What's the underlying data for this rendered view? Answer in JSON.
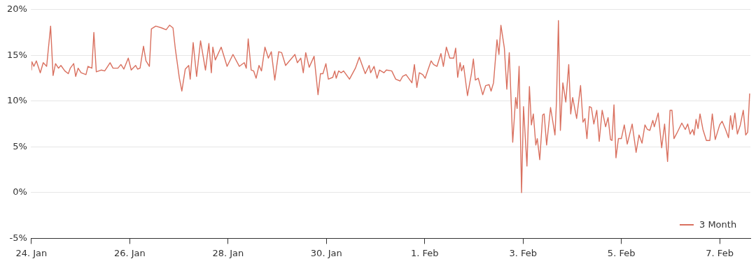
{
  "chart_data": {
    "type": "line",
    "xlim": [
      "--01-24",
      "--02-07T15:00"
    ],
    "ylim": [
      -5,
      20
    ],
    "xticks": [
      {
        "value": "--01-24",
        "label": "24. Jan"
      },
      {
        "value": "--01-26",
        "label": "26. Jan"
      },
      {
        "value": "--01-28",
        "label": "28. Jan"
      },
      {
        "value": "--01-30",
        "label": "30. Jan"
      },
      {
        "value": "--02-01",
        "label": "1. Feb"
      },
      {
        "value": "--02-03",
        "label": "3. Feb"
      },
      {
        "value": "--02-05",
        "label": "5. Feb"
      },
      {
        "value": "--02-07",
        "label": "7. Feb"
      }
    ],
    "yticks": [
      {
        "value": -5,
        "label": "-5%"
      },
      {
        "value": 0,
        "label": "0%"
      },
      {
        "value": 5,
        "label": "5%"
      },
      {
        "value": 10,
        "label": "10%"
      },
      {
        "value": 15,
        "label": "15%"
      },
      {
        "value": 20,
        "label": "20%"
      }
    ],
    "grid": "y",
    "legend": "bottom right",
    "marker": "none",
    "line_style": "solid",
    "series": [
      {
        "name": "3 Month",
        "color": "#d9705f",
        "x": [
          "--01-24T00:00",
          "--01-24T00:14",
          "--01-24T01:12",
          "--01-24T02:24",
          "--01-24T04:19",
          "--01-24T05:46",
          "--01-24T07:26",
          "--01-24T09:22",
          "--01-24T10:34",
          "--01-24T11:46",
          "--01-24T13:12",
          "--01-24T14:24",
          "--01-24T16:19",
          "--01-24T18:00",
          "--01-24T18:58",
          "--01-24T20:38",
          "--01-24T21:36",
          "--01-24T22:48",
          "--01-25T00:14",
          "--01-25T02:38",
          "--01-25T03:36",
          "--01-25T05:31",
          "--01-25T06:29",
          "--01-25T07:41",
          "--01-25T10:05",
          "--01-25T11:46",
          "--01-25T14:24",
          "--01-25T15:50",
          "--01-25T18:14",
          "--01-25T19:41",
          "--01-25T21:07",
          "--01-25T23:17",
          "--01-26T00:43",
          "--01-26T02:53",
          "--01-26T03:50",
          "--01-26T05:02",
          "--01-26T06:43",
          "--01-26T07:55",
          "--01-26T09:36",
          "--01-26T10:34",
          "--01-26T12:43",
          "--01-26T15:36",
          "--01-26T17:46",
          "--01-26T19:26",
          "--01-26T21:07",
          "--01-26T22:19",
          "--01-27T00:14",
          "--01-27T01:26",
          "--01-27T03:07",
          "--01-27T04:48",
          "--01-27T05:31",
          "--01-27T06:58",
          "--01-27T08:38",
          "--01-27T10:34",
          "--01-27T12:58",
          "--01-27T14:38",
          "--01-27T15:50",
          "--01-27T16:34",
          "--01-27T17:46",
          "--01-27T20:38",
          "--01-27T23:31",
          "--01-28T02:24",
          "--01-28T05:31",
          "--01-28T07:55",
          "--01-28T08:53",
          "--01-28T09:50",
          "--01-28T11:17",
          "--01-28T12:29",
          "--01-28T13:41",
          "--01-28T15:07",
          "--01-28T16:19",
          "--01-28T18:00",
          "--01-28T19:41",
          "--01-28T21:07",
          "--01-28T22:48",
          "--01-29T00:43",
          "--01-29T02:10",
          "--01-29T04:05",
          "--01-29T08:38",
          "--01-29T09:50",
          "--01-29T11:31",
          "--01-29T12:43",
          "--01-29T13:55",
          "--01-29T15:36",
          "--01-29T18:00",
          "--01-29T19:55",
          "--01-29T21:07",
          "--01-29T22:19",
          "--01-29T23:46",
          "--01-30T00:58",
          "--01-30T03:07",
          "--01-30T04:05",
          "--01-30T04:48",
          "--01-30T06:00",
          "--01-30T07:12",
          "--01-30T08:24",
          "--01-30T11:17",
          "--01-30T14:10",
          "--01-30T16:05",
          "--01-30T18:58",
          "--01-30T20:53",
          "--01-30T21:36",
          "--01-30T23:17",
          "--01-31T00:43",
          "--01-31T01:55",
          "--01-31T04:05",
          "--01-31T05:17",
          "--01-31T07:55",
          "--01-31T09:50",
          "--01-31T12:00",
          "--01-31T13:12",
          "--01-31T14:53",
          "--01-31T17:46",
          "--01-31T18:58",
          "--01-31T20:10",
          "--01-31T21:22",
          "--01-31T23:02",
          "--02-01T00:14",
          "--02-01T01:26",
          "--02-01T03:07",
          "--02-01T04:19",
          "--02-01T06:00",
          "--02-01T07:55",
          "--02-01T09:07",
          "--02-01T10:34",
          "--02-01T12:14",
          "--02-01T14:10",
          "--02-01T15:07",
          "--02-01T16:05",
          "--02-01T17:17",
          "--02-01T18:00",
          "--02-01T18:58",
          "--02-01T20:53",
          "--02-01T22:48",
          "--02-01T23:46",
          "--02-02T00:43",
          "--02-02T02:10",
          "--02-02T04:19",
          "--02-02T05:46",
          "--02-02T07:26",
          "--02-02T08:24",
          "--02-02T09:36",
          "--02-02T11:17",
          "--02-02T12:14",
          "--02-02T13:12",
          "--02-02T14:53",
          "--02-02T16:05",
          "--02-02T17:17",
          "--02-02T18:58",
          "--02-02T20:24",
          "--02-02T21:07",
          "--02-02T22:05",
          "--02-02T23:17",
          "--02-03T00:14",
          "--02-03T01:55",
          "--02-03T03:07",
          "--02-03T04:05",
          "--02-03T05:02",
          "--02-03T06:14",
          "--02-03T06:58",
          "--02-03T08:10",
          "--02-03T09:36",
          "--02-03T10:19",
          "--02-03T11:31",
          "--02-03T13:26",
          "--02-03T15:36",
          "--02-03T16:19",
          "--02-03T17:17",
          "--02-03T18:14",
          "--02-03T19:26",
          "--02-03T20:53",
          "--02-03T22:19",
          "--02-03T23:17",
          "--02-04T00:14",
          "--02-04T02:10",
          "--02-04T04:05",
          "--02-04T05:17",
          "--02-04T06:14",
          "--02-04T07:12",
          "--02-04T08:24",
          "--02-04T09:22",
          "--02-04T10:34",
          "--02-04T12:00",
          "--02-04T13:12",
          "--02-04T14:38",
          "--02-04T16:19",
          "--02-04T17:31",
          "--02-04T18:43",
          "--02-04T19:26",
          "--02-04T20:24",
          "--02-04T21:22",
          "--02-04T22:34",
          "--02-05T00:00",
          "--02-05T01:26",
          "--02-05T02:53",
          "--02-05T05:17",
          "--02-05T07:12",
          "--02-05T08:38",
          "--02-05T10:05",
          "--02-05T11:31",
          "--02-05T12:43",
          "--02-05T13:55",
          "--02-05T15:22",
          "--02-05T16:05",
          "--02-05T18:00",
          "--02-05T19:41",
          "--02-05T21:07",
          "--02-05T22:34",
          "--02-05T23:46",
          "--02-06T00:43",
          "--02-06T01:41",
          "--02-06T03:07",
          "--02-06T05:31",
          "--02-06T07:12",
          "--02-06T08:24",
          "--02-06T09:36",
          "--02-06T10:48",
          "--02-06T11:31",
          "--02-06T12:29",
          "--02-06T13:26",
          "--02-06T14:24",
          "--02-06T15:50",
          "--02-06T17:31",
          "--02-06T19:12",
          "--02-06T20:24",
          "--02-06T21:50",
          "--02-07T00:00",
          "--02-07T01:12",
          "--02-07T02:53",
          "--02-07T04:19",
          "--02-07T05:17",
          "--02-07T06:14",
          "--02-07T07:26",
          "--02-07T08:38",
          "--02-07T10:05",
          "--02-07T11:31",
          "--02-07T12:43",
          "--02-07T13:41",
          "--02-07T14:38"
        ],
        "values": [
          13.4,
          14.3,
          13.8,
          14.4,
          13.1,
          14.2,
          13.8,
          18.2,
          12.8,
          14.1,
          13.6,
          13.9,
          13.3,
          13.0,
          13.6,
          14.1,
          12.7,
          13.6,
          13.1,
          12.9,
          13.8,
          13.6,
          17.5,
          13.2,
          13.4,
          13.3,
          14.2,
          13.6,
          13.6,
          14.0,
          13.5,
          14.7,
          13.4,
          13.9,
          13.5,
          13.6,
          16.0,
          14.4,
          13.8,
          17.9,
          18.2,
          18.0,
          17.8,
          18.3,
          18.0,
          15.6,
          12.5,
          11.1,
          13.5,
          13.9,
          12.4,
          16.4,
          12.7,
          16.6,
          13.4,
          16.3,
          13.1,
          15.9,
          14.5,
          15.9,
          13.8,
          15.1,
          13.8,
          14.2,
          13.6,
          16.8,
          13.4,
          13.3,
          12.5,
          13.9,
          13.3,
          15.9,
          14.7,
          15.4,
          12.3,
          15.4,
          15.3,
          13.9,
          15.1,
          14.2,
          14.7,
          13.1,
          15.3,
          13.7,
          14.9,
          10.7,
          13.0,
          13.0,
          14.1,
          12.4,
          12.6,
          13.3,
          12.5,
          13.3,
          13.1,
          13.3,
          12.4,
          13.6,
          14.8,
          13.0,
          13.9,
          13.1,
          13.8,
          12.5,
          13.4,
          13.1,
          13.4,
          13.3,
          12.4,
          12.2,
          12.7,
          12.9,
          12.0,
          14.0,
          11.5,
          13.1,
          12.9,
          12.5,
          13.3,
          14.4,
          14.0,
          13.8,
          15.2,
          13.8,
          15.9,
          14.7,
          14.7,
          15.8,
          12.6,
          14.2,
          13.3,
          13.9,
          10.6,
          13.0,
          14.6,
          12.3,
          12.5,
          10.7,
          11.7,
          11.8,
          11.1,
          12.0,
          16.7,
          15.1,
          18.3,
          15.8,
          11.3,
          15.3,
          5.5,
          10.4,
          9.2,
          13.8,
          0.0,
          9.4,
          2.9,
          11.6,
          7.4,
          8.6,
          5.2,
          5.9,
          3.6,
          8.5,
          8.6,
          5.2,
          9.3,
          6.3,
          9.9,
          18.8,
          6.8,
          12.0,
          9.9,
          14.0,
          8.6,
          10.4,
          8.1,
          11.7,
          7.7,
          8.1,
          5.9,
          9.4,
          9.3,
          7.5,
          9.0,
          5.6,
          9.0,
          7.2,
          8.2,
          5.8,
          5.7,
          9.6,
          3.8,
          5.9,
          5.9,
          7.4,
          5.3,
          7.5,
          4.4,
          6.3,
          5.4,
          7.4,
          6.9,
          6.8,
          7.9,
          7.2,
          8.7,
          4.9,
          7.5,
          3.4,
          9.0,
          9.0,
          5.9,
          6.5,
          7.6,
          6.9,
          7.5,
          6.4,
          6.9,
          6.3,
          8.0,
          7.0,
          8.6,
          6.9,
          5.7,
          5.7,
          8.6,
          5.8,
          7.4,
          7.8,
          6.9,
          6.0,
          8.4,
          6.9,
          8.7,
          6.4,
          7.4,
          9.0,
          6.3,
          6.6,
          10.8
        ]
      }
    ]
  }
}
